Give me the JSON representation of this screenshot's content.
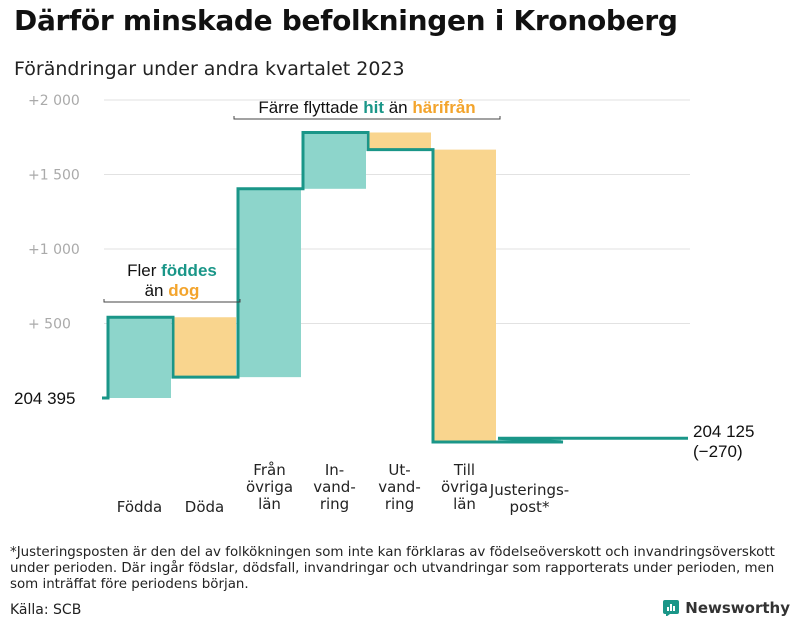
{
  "title": "Därför minskade befolkningen i Kronoberg",
  "subtitle": "Förändringar under andra kvartalet 2023",
  "colors": {
    "teal": "#1a9688",
    "teal_fill": "#8dd5cb",
    "orange": "#f3a42c",
    "orange_fill": "#f9d58e",
    "grid": "#e2e2e2",
    "tick": "#aaaaaa"
  },
  "chart_data": {
    "type": "waterfall",
    "start_value": 204395,
    "end_value": 204125,
    "start_label": "204  395",
    "end_label_value": "204 125",
    "end_label_change": "(−270)",
    "y_ticks": [
      {
        "value": 2000,
        "label": "+2  000"
      },
      {
        "value": 1500,
        "label": "+1  500"
      },
      {
        "value": 1000,
        "label": "+1  000"
      },
      {
        "value": 500,
        "label": "+  500"
      }
    ],
    "ylim": [
      -460,
      2000
    ],
    "steps": [
      {
        "lines": [
          "Födda"
        ],
        "change": 542,
        "color": "teal"
      },
      {
        "lines": [
          "Döda"
        ],
        "change": -402,
        "color": "orange"
      },
      {
        "lines": [
          "Från",
          "övriga",
          "län"
        ],
        "change": 1264,
        "color": "teal"
      },
      {
        "lines": [
          "In-",
          "vand-",
          "ring"
        ],
        "change": 378,
        "color": "teal"
      },
      {
        "lines": [
          "Ut-",
          "vand-",
          "ring"
        ],
        "change": -115,
        "color": "orange"
      },
      {
        "lines": [
          "Till",
          "övriga",
          "län"
        ],
        "change": -1962,
        "color": "orange"
      },
      {
        "lines": [
          "Justerings-",
          "post*"
        ],
        "change": 25,
        "color": "teal"
      }
    ],
    "annotations": [
      {
        "lines": [
          [
            {
              "text": "Fler ",
              "style": "plain"
            },
            {
              "text": "föddes",
              "style": "teal"
            }
          ],
          [
            {
              "text": "än ",
              "style": "plain"
            },
            {
              "text": "dog",
              "style": "orange"
            }
          ]
        ],
        "span": [
          0,
          1
        ]
      },
      {
        "lines": [
          [
            {
              "text": "Färre flyttade ",
              "style": "plain"
            },
            {
              "text": "hit",
              "style": "teal"
            },
            {
              "text": "  än ",
              "style": "plain"
            },
            {
              "text": "härifrån",
              "style": "orange"
            }
          ]
        ],
        "span": [
          2,
          5
        ]
      }
    ]
  },
  "footnote": "*Justeringsposten är den del av folkökningen som inte kan förklaras av födelseöverskott och invandringsöverskott under perioden. Där ingår födslar, dödsfall, invandringar och utvandringar som rapporterats under perioden, men som inträffat före periodens början.",
  "source": "Källa: SCB",
  "brand": "Newsworthy"
}
